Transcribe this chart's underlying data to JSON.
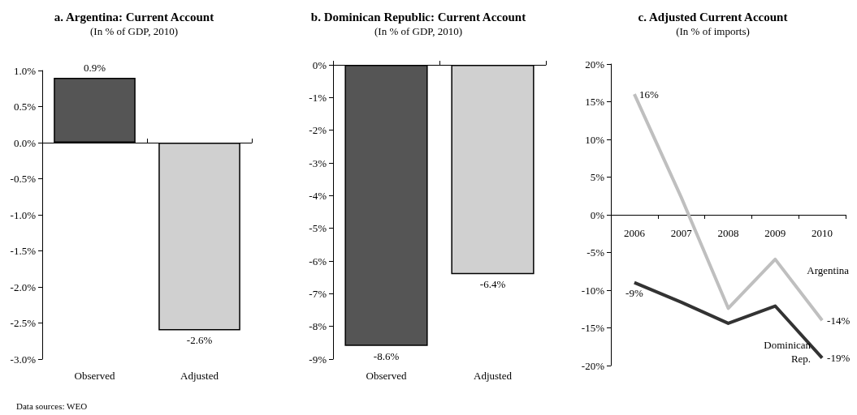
{
  "chart_data": [
    {
      "type": "bar",
      "title": "a. Argentina: Current Account",
      "subtitle": "(In % of GDP, 2010)",
      "categories": [
        "Observed",
        "Adjusted"
      ],
      "values": [
        0.9,
        -2.6
      ],
      "colors": [
        "#555555",
        "#d0d0d0"
      ],
      "value_labels": [
        "0.9%",
        "-2.6%"
      ],
      "ylim": [
        -3,
        1
      ],
      "yticks": [
        {
          "value": -3,
          "label": "-3.0%"
        },
        {
          "value": -2.5,
          "label": "-2.5%"
        },
        {
          "value": -2,
          "label": "-2.0%"
        },
        {
          "value": -1.5,
          "label": "-1.5%"
        },
        {
          "value": -1,
          "label": "-1.0%"
        },
        {
          "value": -0.5,
          "label": "-0.5%"
        },
        {
          "value": 0,
          "label": "0.0%"
        },
        {
          "value": 0.5,
          "label": "0.5%"
        },
        {
          "value": 1,
          "label": "1.0%"
        }
      ],
      "annotations": [
        "Data sources: WEO"
      ]
    },
    {
      "type": "bar",
      "title": "b. Dominican Republic: Current Account",
      "subtitle": "(In % of GDP, 2010)",
      "categories": [
        "Observed",
        "Adjusted"
      ],
      "values": [
        -8.6,
        -6.4
      ],
      "colors": [
        "#555555",
        "#d0d0d0"
      ],
      "value_labels": [
        "-8.6%",
        "-6.4%"
      ],
      "ylim": [
        -9,
        0
      ],
      "yticks": [
        {
          "value": -9,
          "label": "-9%"
        },
        {
          "value": -8,
          "label": "-8%"
        },
        {
          "value": -7,
          "label": "-7%"
        },
        {
          "value": -6,
          "label": "-6%"
        },
        {
          "value": -5,
          "label": "-5%"
        },
        {
          "value": -4,
          "label": "-4%"
        },
        {
          "value": -3,
          "label": "-3%"
        },
        {
          "value": -2,
          "label": "-2%"
        },
        {
          "value": -1,
          "label": "-1%"
        },
        {
          "value": 0,
          "label": "0%"
        }
      ]
    },
    {
      "type": "line",
      "title": "c. Adjusted Current Account",
      "subtitle": "(In % of imports)",
      "categories": [
        "2006",
        "2007",
        "2008",
        "2009",
        "2010"
      ],
      "series": [
        {
          "name": "Argentina",
          "color": "#bfbfbf",
          "values": [
            16,
            2.3,
            -12.4,
            -5.9,
            -14
          ],
          "value_labels": [
            "16%",
            null,
            null,
            null,
            "-14%"
          ]
        },
        {
          "name": "Dominican Rep.",
          "color": "#333333",
          "values": [
            -9,
            -11.6,
            -14.4,
            -12.1,
            -19
          ],
          "value_labels": [
            "-9%",
            null,
            null,
            null,
            "-19%"
          ]
        }
      ],
      "ylim": [
        -20,
        20
      ],
      "yticks": [
        {
          "value": -20,
          "label": "-20%"
        },
        {
          "value": -15,
          "label": "-15%"
        },
        {
          "value": -10,
          "label": "-10%"
        },
        {
          "value": -5,
          "label": "-5%"
        },
        {
          "value": 0,
          "label": "0%"
        },
        {
          "value": 5,
          "label": "5%"
        },
        {
          "value": 10,
          "label": "10%"
        },
        {
          "value": 15,
          "label": "15%"
        },
        {
          "value": 20,
          "label": "20%"
        }
      ],
      "marker": "none"
    }
  ]
}
